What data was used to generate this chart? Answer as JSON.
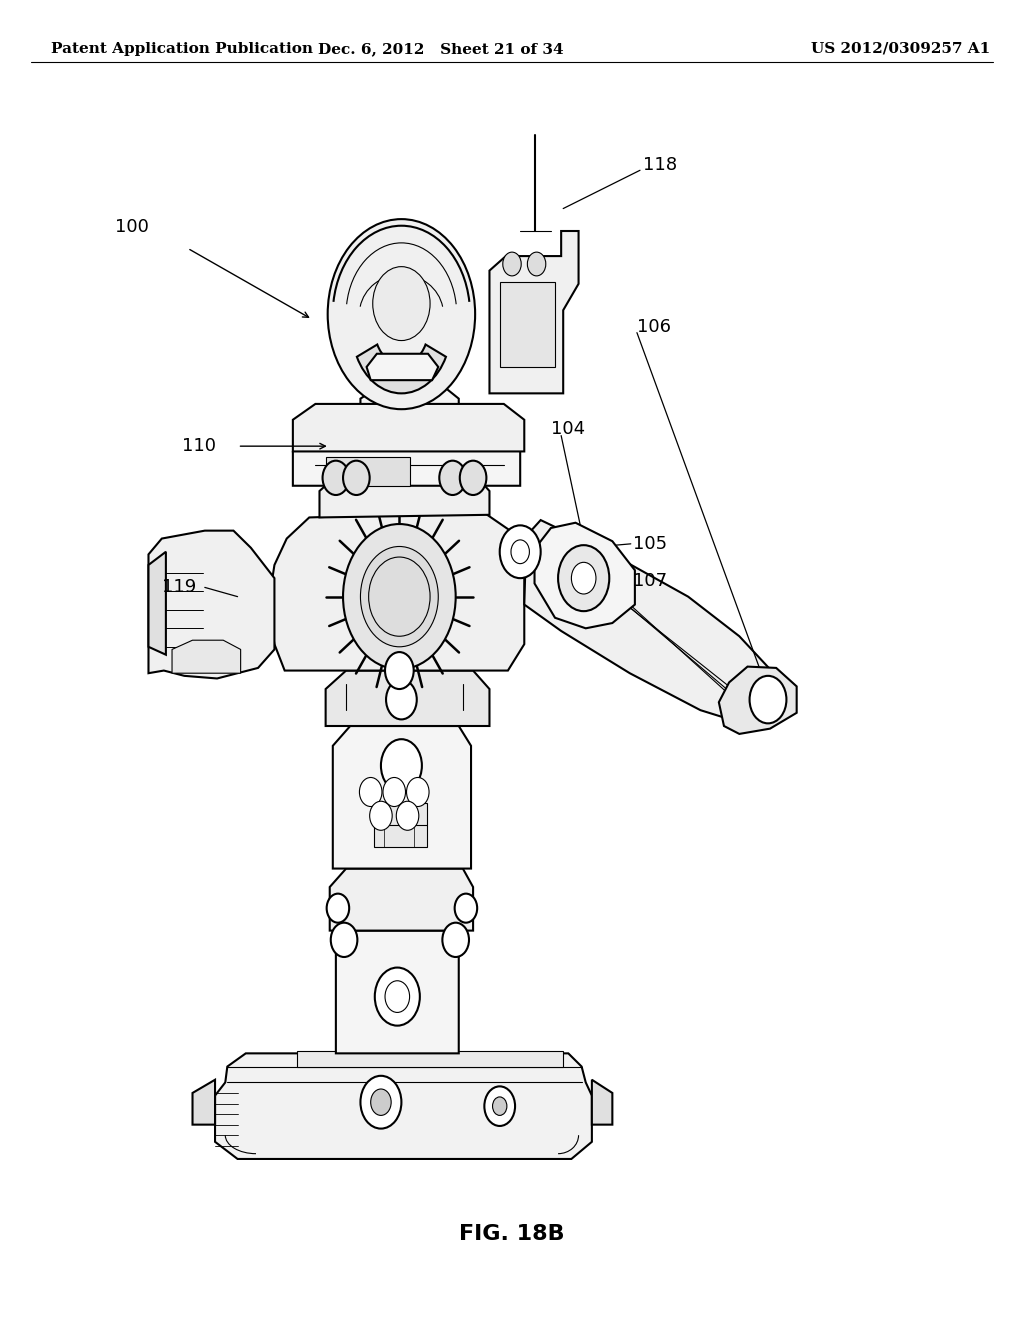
{
  "bg_color": "#ffffff",
  "line_color": "#000000",
  "header_left": "Patent Application Publication",
  "header_mid": "Dec. 6, 2012   Sheet 21 of 34",
  "header_right": "US 2012/0309257 A1",
  "figure_label": "FIG. 18B",
  "header_fontsize": 11,
  "label_fontsize": 13,
  "fig_label_fontsize": 16
}
